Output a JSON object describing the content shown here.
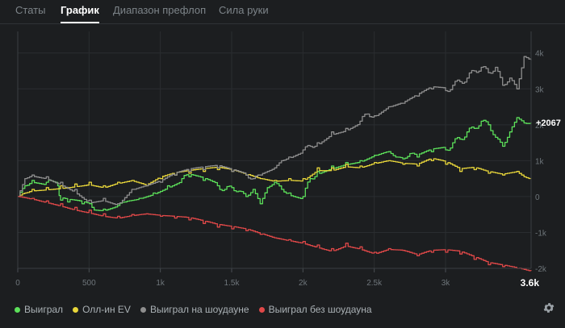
{
  "tabs": [
    {
      "label": "Статы",
      "active": false
    },
    {
      "label": "График",
      "active": true
    },
    {
      "label": "Диапазон префлоп",
      "active": false
    },
    {
      "label": "Сила руки",
      "active": false
    }
  ],
  "legend": [
    {
      "label": "Выиграл",
      "color": "#5ce05a"
    },
    {
      "label": "Олл-ин EV",
      "color": "#e8d63a"
    },
    {
      "label": "Выиграл на шоудауне",
      "color": "#8e8e8e"
    },
    {
      "label": "Выиграл без шоудауна",
      "color": "#e04848"
    }
  ],
  "settings_icon": "gear-icon",
  "chart_data": {
    "type": "line",
    "x_ticks": [
      {
        "value": 0,
        "label": "0"
      },
      {
        "value": 500,
        "label": "500"
      },
      {
        "value": 1000,
        "label": "1k"
      },
      {
        "value": 1500,
        "label": "1.5k"
      },
      {
        "value": 2000,
        "label": "2k"
      },
      {
        "value": 2500,
        "label": "2.5k"
      },
      {
        "value": 3000,
        "label": "3k"
      }
    ],
    "x_end_label": "3.6k",
    "xlim": [
      0,
      3600
    ],
    "y_ticks": [
      {
        "value": 4000,
        "label": "4k"
      },
      {
        "value": 3000,
        "label": "3k"
      },
      {
        "value": 2000,
        "label": "2k"
      },
      {
        "value": 1000,
        "label": "1k"
      },
      {
        "value": 0,
        "label": "0"
      },
      {
        "value": -1000,
        "label": "-1k"
      },
      {
        "value": -2000,
        "label": "-2k"
      }
    ],
    "ylim": [
      -2000,
      4600
    ],
    "end_value_label": "+2067",
    "end_value": 2067,
    "series": [
      {
        "name": "Выиграл",
        "color": "#5ce05a",
        "x": [
          0,
          50,
          100,
          200,
          280,
          300,
          350,
          450,
          520,
          600,
          700,
          750,
          850,
          950,
          1050,
          1150,
          1200,
          1300,
          1400,
          1450,
          1500,
          1550,
          1600,
          1650,
          1700,
          1750,
          1800,
          1850,
          1900,
          2000,
          2050,
          2100,
          2200,
          2300,
          2400,
          2500,
          2600,
          2650,
          2700,
          2750,
          2800,
          2900,
          3000,
          3050,
          3100,
          3150,
          3200,
          3250,
          3300,
          3350,
          3400,
          3450,
          3500,
          3550,
          3600
        ],
        "y": [
          0,
          300,
          450,
          400,
          300,
          -100,
          -150,
          -200,
          -300,
          -350,
          -250,
          -150,
          -50,
          100,
          300,
          500,
          550,
          450,
          300,
          200,
          250,
          150,
          0,
          200,
          -200,
          250,
          400,
          200,
          100,
          0,
          500,
          700,
          850,
          950,
          1000,
          1150,
          1250,
          1100,
          1050,
          1200,
          1100,
          1250,
          1300,
          1500,
          1600,
          1800,
          1900,
          2100,
          2000,
          1650,
          1400,
          1800,
          2200,
          2050,
          2067
        ]
      },
      {
        "name": "Олл-ин EV",
        "color": "#e8d63a",
        "x": [
          0,
          50,
          100,
          200,
          300,
          400,
          500,
          600,
          700,
          800,
          900,
          1000,
          1100,
          1200,
          1300,
          1400,
          1500,
          1600,
          1700,
          1800,
          1900,
          2000,
          2100,
          2200,
          2300,
          2400,
          2500,
          2600,
          2700,
          2800,
          2900,
          3000,
          3100,
          3200,
          3300,
          3400,
          3500,
          3550,
          3600
        ],
        "y": [
          0,
          100,
          200,
          250,
          300,
          350,
          400,
          300,
          400,
          450,
          300,
          500,
          600,
          650,
          700,
          750,
          700,
          600,
          500,
          450,
          500,
          500,
          800,
          800,
          900,
          850,
          950,
          1000,
          900,
          850,
          1000,
          900,
          700,
          750,
          650,
          600,
          700,
          550,
          500
        ]
      },
      {
        "name": "Выиграл на шоудауне",
        "color": "#8e8e8e",
        "x": [
          0,
          50,
          100,
          200,
          300,
          400,
          500,
          600,
          700,
          800,
          900,
          1000,
          1100,
          1200,
          1300,
          1400,
          1500,
          1600,
          1650,
          1700,
          1800,
          1850,
          1900,
          2000,
          2050,
          2100,
          2200,
          2300,
          2400,
          2450,
          2500,
          2600,
          2700,
          2800,
          2900,
          3000,
          3050,
          3100,
          3150,
          3200,
          3250,
          3300,
          3350,
          3400,
          3450,
          3500,
          3550,
          3600
        ],
        "y": [
          0,
          500,
          600,
          550,
          400,
          200,
          -100,
          -50,
          -200,
          200,
          300,
          400,
          600,
          700,
          750,
          800,
          700,
          600,
          500,
          600,
          800,
          1000,
          1100,
          1300,
          1400,
          1500,
          1800,
          1900,
          2100,
          2300,
          2250,
          2500,
          2600,
          2800,
          3000,
          2950,
          3100,
          3200,
          3300,
          3500,
          3600,
          3450,
          3600,
          3100,
          3300,
          3000,
          3900,
          3800
        ]
      },
      {
        "name": "Выиграл без шоудауна",
        "color": "#e04848",
        "x": [
          0,
          100,
          200,
          300,
          400,
          500,
          600,
          700,
          800,
          900,
          1000,
          1100,
          1200,
          1300,
          1400,
          1500,
          1600,
          1700,
          1800,
          1900,
          2000,
          2100,
          2200,
          2300,
          2400,
          2500,
          2600,
          2700,
          2800,
          2900,
          3000,
          3100,
          3200,
          3300,
          3400,
          3500,
          3600
        ],
        "y": [
          0,
          -50,
          -120,
          -200,
          -300,
          -380,
          -480,
          -550,
          -500,
          -480,
          -550,
          -600,
          -650,
          -750,
          -850,
          -900,
          -950,
          -1050,
          -1150,
          -1200,
          -1250,
          -1350,
          -1450,
          -1300,
          -1400,
          -1550,
          -1450,
          -1500,
          -1650,
          -1550,
          -1550,
          -1600,
          -1750,
          -1900,
          -1950,
          -2000,
          -2070
        ]
      }
    ]
  }
}
